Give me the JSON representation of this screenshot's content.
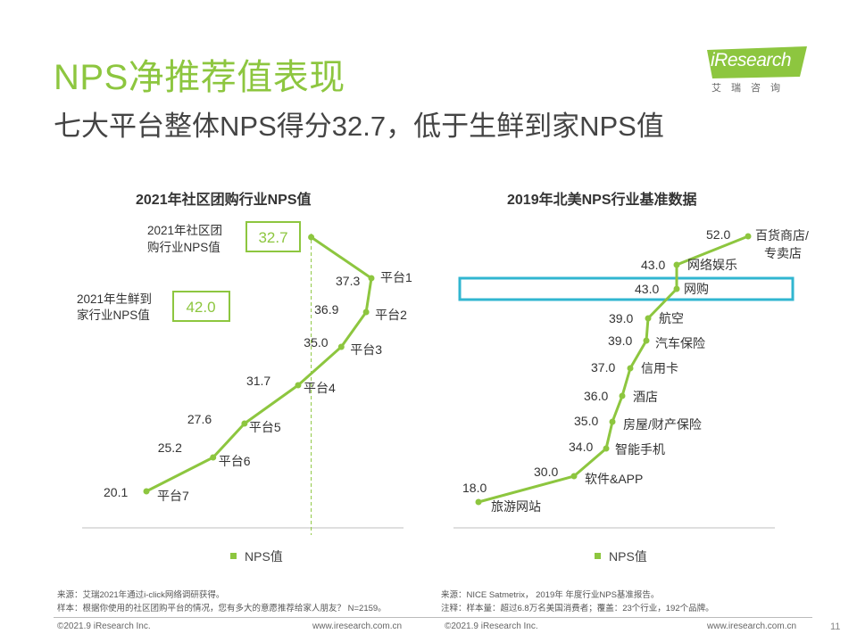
{
  "title": "NPS净推荐值表现",
  "subtitle": "七大平台整体NPS得分32.7，低于生鲜到家NPS值",
  "logo": {
    "brand": "iResearch",
    "cn": "艾瑞咨询"
  },
  "colors": {
    "accent": "#8dc63f",
    "highlight": "#31b6d0",
    "text": "#333333"
  },
  "chart_data": [
    {
      "type": "line",
      "title": "2021年社区团购行业NPS值",
      "legend": "NPS值",
      "points": [
        {
          "label": "平台1",
          "value": 37.3
        },
        {
          "label": "平台2",
          "value": 36.9
        },
        {
          "label": "平台3",
          "value": 35.0
        },
        {
          "label": "平台4",
          "value": 31.7
        },
        {
          "label": "平台5",
          "value": 27.6
        },
        {
          "label": "平台6",
          "value": 25.2
        },
        {
          "label": "平台7",
          "value": 20.1
        }
      ],
      "industry_value": {
        "label_line1": "2021年社区团",
        "label_line2": "购行业NPS值",
        "value": "32.7"
      },
      "fresh_value": {
        "label_line1": "2021年生鲜到",
        "label_line2": "家行业NPS值",
        "value": "42.0"
      }
    },
    {
      "type": "line",
      "title": "2019年北美NPS行业基准数据",
      "legend": "NPS值",
      "highlight_index": 2,
      "points": [
        {
          "label": "百货商店/",
          "label2": "专卖店",
          "value": 52.0
        },
        {
          "label": "网络娱乐",
          "value": 43.0
        },
        {
          "label": "网购",
          "value": 43.0
        },
        {
          "label": "航空",
          "value": 39.0
        },
        {
          "label": "汽车保险",
          "value": 39.0
        },
        {
          "label": "信用卡",
          "value": 37.0
        },
        {
          "label": "酒店",
          "value": 36.0
        },
        {
          "label": "房屋/财产保险",
          "value": 35.0
        },
        {
          "label": "智能手机",
          "value": 34.0
        },
        {
          "label": "软件&APP",
          "value": 30.0
        },
        {
          "label": "旅游网站",
          "value": 18.0
        }
      ]
    }
  ],
  "notes_left": [
    "来源：艾瑞2021年通过i-click网络调研获得。",
    "样本：根据你使用的社区团购平台的情况，您有多大的意愿推荐给家人朋友？ N=2159。"
  ],
  "notes_right": [
    "来源：NICE Satmetrix， 2019年 年度行业NPS基准报告。",
    "注释：样本量：超过6.8万名美国消费者；覆盖：23个行业，192个品牌。"
  ],
  "footer": {
    "copyright_left": "©2021.9 iResearch Inc.",
    "url_left": "www.iresearch.com.cn",
    "copyright_right": "©2021.9 iResearch Inc.",
    "url_right": "www.iresearch.com.cn",
    "page": "11"
  }
}
